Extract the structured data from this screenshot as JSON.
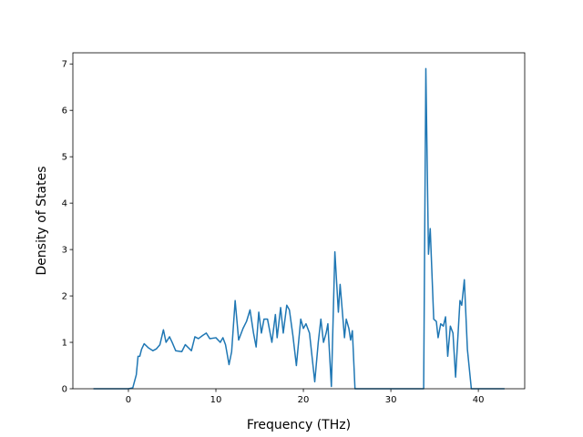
{
  "chart_data": {
    "type": "line",
    "x_label": "Frequency (THz)",
    "y_label": "Density of States",
    "xlim": [
      -6.35,
      45.3
    ],
    "ylim": [
      0,
      7.24
    ],
    "xticks": [
      0,
      10,
      20,
      30,
      40
    ],
    "yticks": [
      0,
      1,
      2,
      3,
      4,
      5,
      6,
      7
    ],
    "series": [
      {
        "color": "#1f77b4",
        "x": [
          -4,
          0,
          0.5,
          0.9,
          1.1,
          1.3,
          1.5,
          1.8,
          2.3,
          2.8,
          3.2,
          3.6,
          4.0,
          4.3,
          4.7,
          5.0,
          5.4,
          6.1,
          6.5,
          7.2,
          7.6,
          8.0,
          8.5,
          8.9,
          9.3,
          10.0,
          10.5,
          10.8,
          11.1,
          11.5,
          11.8,
          12.2,
          12.6,
          13.1,
          13.5,
          13.9,
          14.3,
          14.6,
          14.9,
          15.2,
          15.5,
          15.9,
          16.4,
          16.8,
          17.0,
          17.4,
          17.7,
          18.1,
          18.4,
          18.8,
          19.2,
          19.7,
          20.0,
          20.3,
          20.7,
          21.3,
          21.7,
          22.0,
          22.3,
          22.6,
          22.8,
          23.2,
          23.6,
          24.0,
          24.2,
          24.7,
          24.9,
          25.2,
          25.4,
          25.6,
          25.9,
          33.75,
          34.0,
          34.3,
          34.5,
          34.9,
          35.2,
          35.4,
          35.7,
          36.0,
          36.25,
          36.5,
          36.8,
          37.1,
          37.4,
          37.9,
          38.1,
          38.4,
          38.75,
          39.2,
          43
        ],
        "values": [
          0,
          0,
          0.02,
          0.3,
          0.7,
          0.7,
          0.85,
          0.97,
          0.88,
          0.82,
          0.86,
          0.95,
          1.27,
          1.0,
          1.12,
          1.0,
          0.82,
          0.8,
          0.95,
          0.82,
          1.12,
          1.08,
          1.15,
          1.2,
          1.08,
          1.1,
          1.0,
          1.1,
          0.95,
          0.52,
          0.8,
          1.9,
          1.05,
          1.3,
          1.45,
          1.7,
          1.2,
          0.9,
          1.65,
          1.2,
          1.5,
          1.5,
          1.0,
          1.6,
          1.1,
          1.75,
          1.2,
          1.8,
          1.7,
          1.15,
          0.5,
          1.5,
          1.3,
          1.4,
          1.2,
          0.15,
          1.0,
          1.5,
          1.0,
          1.2,
          1.4,
          0.05,
          2.95,
          1.65,
          2.25,
          1.1,
          1.5,
          1.3,
          1.05,
          1.25,
          0,
          0,
          6.9,
          2.9,
          3.45,
          1.5,
          1.45,
          1.1,
          1.4,
          1.35,
          1.55,
          0.7,
          1.35,
          1.2,
          0.25,
          1.9,
          1.8,
          2.35,
          0.85,
          0,
          0
        ]
      }
    ]
  }
}
